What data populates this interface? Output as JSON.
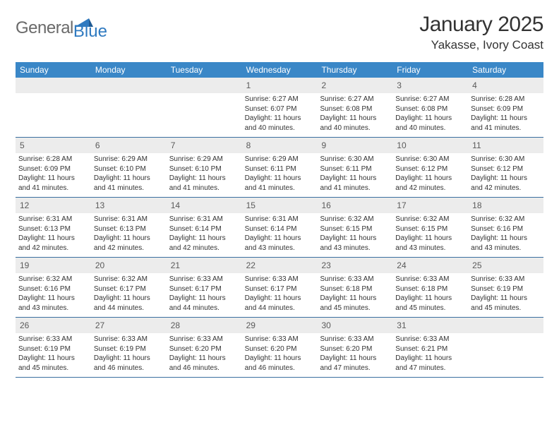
{
  "logo": {
    "text1": "General",
    "text2": "Blue"
  },
  "title": "January 2025",
  "subtitle": "Yakasse, Ivory Coast",
  "colors": {
    "header_bg": "#3a87c7",
    "header_text": "#ffffff",
    "daynum_bg": "#ececec",
    "week_border": "#3a6fa0",
    "body_text": "#333333",
    "logo_gray": "#6a6a6a",
    "logo_blue": "#2f7ac0"
  },
  "day_headers": [
    "Sunday",
    "Monday",
    "Tuesday",
    "Wednesday",
    "Thursday",
    "Friday",
    "Saturday"
  ],
  "weeks": [
    [
      {
        "n": "",
        "sr": "",
        "ss": "",
        "dl": ""
      },
      {
        "n": "",
        "sr": "",
        "ss": "",
        "dl": ""
      },
      {
        "n": "",
        "sr": "",
        "ss": "",
        "dl": ""
      },
      {
        "n": "1",
        "sr": "6:27 AM",
        "ss": "6:07 PM",
        "dl": "11 hours and 40 minutes."
      },
      {
        "n": "2",
        "sr": "6:27 AM",
        "ss": "6:08 PM",
        "dl": "11 hours and 40 minutes."
      },
      {
        "n": "3",
        "sr": "6:27 AM",
        "ss": "6:08 PM",
        "dl": "11 hours and 40 minutes."
      },
      {
        "n": "4",
        "sr": "6:28 AM",
        "ss": "6:09 PM",
        "dl": "11 hours and 41 minutes."
      }
    ],
    [
      {
        "n": "5",
        "sr": "6:28 AM",
        "ss": "6:09 PM",
        "dl": "11 hours and 41 minutes."
      },
      {
        "n": "6",
        "sr": "6:29 AM",
        "ss": "6:10 PM",
        "dl": "11 hours and 41 minutes."
      },
      {
        "n": "7",
        "sr": "6:29 AM",
        "ss": "6:10 PM",
        "dl": "11 hours and 41 minutes."
      },
      {
        "n": "8",
        "sr": "6:29 AM",
        "ss": "6:11 PM",
        "dl": "11 hours and 41 minutes."
      },
      {
        "n": "9",
        "sr": "6:30 AM",
        "ss": "6:11 PM",
        "dl": "11 hours and 41 minutes."
      },
      {
        "n": "10",
        "sr": "6:30 AM",
        "ss": "6:12 PM",
        "dl": "11 hours and 42 minutes."
      },
      {
        "n": "11",
        "sr": "6:30 AM",
        "ss": "6:12 PM",
        "dl": "11 hours and 42 minutes."
      }
    ],
    [
      {
        "n": "12",
        "sr": "6:31 AM",
        "ss": "6:13 PM",
        "dl": "11 hours and 42 minutes."
      },
      {
        "n": "13",
        "sr": "6:31 AM",
        "ss": "6:13 PM",
        "dl": "11 hours and 42 minutes."
      },
      {
        "n": "14",
        "sr": "6:31 AM",
        "ss": "6:14 PM",
        "dl": "11 hours and 42 minutes."
      },
      {
        "n": "15",
        "sr": "6:31 AM",
        "ss": "6:14 PM",
        "dl": "11 hours and 43 minutes."
      },
      {
        "n": "16",
        "sr": "6:32 AM",
        "ss": "6:15 PM",
        "dl": "11 hours and 43 minutes."
      },
      {
        "n": "17",
        "sr": "6:32 AM",
        "ss": "6:15 PM",
        "dl": "11 hours and 43 minutes."
      },
      {
        "n": "18",
        "sr": "6:32 AM",
        "ss": "6:16 PM",
        "dl": "11 hours and 43 minutes."
      }
    ],
    [
      {
        "n": "19",
        "sr": "6:32 AM",
        "ss": "6:16 PM",
        "dl": "11 hours and 43 minutes."
      },
      {
        "n": "20",
        "sr": "6:32 AM",
        "ss": "6:17 PM",
        "dl": "11 hours and 44 minutes."
      },
      {
        "n": "21",
        "sr": "6:33 AM",
        "ss": "6:17 PM",
        "dl": "11 hours and 44 minutes."
      },
      {
        "n": "22",
        "sr": "6:33 AM",
        "ss": "6:17 PM",
        "dl": "11 hours and 44 minutes."
      },
      {
        "n": "23",
        "sr": "6:33 AM",
        "ss": "6:18 PM",
        "dl": "11 hours and 45 minutes."
      },
      {
        "n": "24",
        "sr": "6:33 AM",
        "ss": "6:18 PM",
        "dl": "11 hours and 45 minutes."
      },
      {
        "n": "25",
        "sr": "6:33 AM",
        "ss": "6:19 PM",
        "dl": "11 hours and 45 minutes."
      }
    ],
    [
      {
        "n": "26",
        "sr": "6:33 AM",
        "ss": "6:19 PM",
        "dl": "11 hours and 45 minutes."
      },
      {
        "n": "27",
        "sr": "6:33 AM",
        "ss": "6:19 PM",
        "dl": "11 hours and 46 minutes."
      },
      {
        "n": "28",
        "sr": "6:33 AM",
        "ss": "6:20 PM",
        "dl": "11 hours and 46 minutes."
      },
      {
        "n": "29",
        "sr": "6:33 AM",
        "ss": "6:20 PM",
        "dl": "11 hours and 46 minutes."
      },
      {
        "n": "30",
        "sr": "6:33 AM",
        "ss": "6:20 PM",
        "dl": "11 hours and 47 minutes."
      },
      {
        "n": "31",
        "sr": "6:33 AM",
        "ss": "6:21 PM",
        "dl": "11 hours and 47 minutes."
      },
      {
        "n": "",
        "sr": "",
        "ss": "",
        "dl": ""
      }
    ]
  ],
  "labels": {
    "sunrise": "Sunrise: ",
    "sunset": "Sunset: ",
    "daylight": "Daylight: "
  }
}
